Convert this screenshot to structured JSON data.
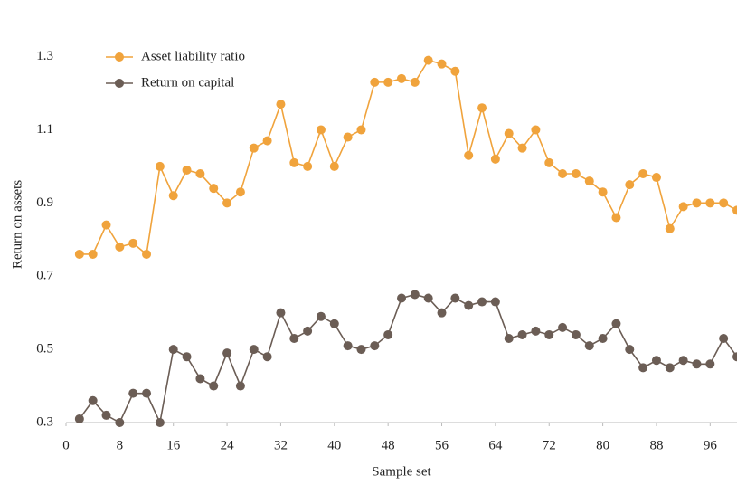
{
  "chart_data": {
    "type": "line",
    "x_label": "Sample set",
    "y_label": "Return on assets",
    "x": [
      2,
      4,
      6,
      8,
      10,
      12,
      14,
      16,
      18,
      20,
      22,
      24,
      26,
      28,
      30,
      32,
      34,
      36,
      38,
      40,
      42,
      44,
      46,
      48,
      50,
      52,
      54,
      56,
      58,
      60,
      62,
      64,
      66,
      68,
      70,
      72,
      74,
      76,
      78,
      80,
      82,
      84,
      86,
      88,
      90,
      92,
      94,
      96,
      98,
      100
    ],
    "series": [
      {
        "name": "Asset liability ratio",
        "color": "#f0a33c",
        "values": [
          0.76,
          0.76,
          0.84,
          0.78,
          0.79,
          0.76,
          1.0,
          0.92,
          0.99,
          0.98,
          0.94,
          0.9,
          0.93,
          1.05,
          1.07,
          1.17,
          1.01,
          1.0,
          1.1,
          1.0,
          1.08,
          1.1,
          1.23,
          1.23,
          1.24,
          1.23,
          1.29,
          1.28,
          1.26,
          1.03,
          1.16,
          1.02,
          1.09,
          1.05,
          1.1,
          1.01,
          0.98,
          0.98,
          0.96,
          0.93,
          0.86,
          0.95,
          0.98,
          0.97,
          0.83,
          0.89,
          0.9,
          0.9,
          0.9,
          0.88
        ]
      },
      {
        "name": "Return on capital",
        "color": "#6b5d55",
        "values": [
          0.31,
          0.36,
          0.32,
          0.3,
          0.38,
          0.38,
          0.3,
          0.5,
          0.48,
          0.42,
          0.4,
          0.49,
          0.4,
          0.5,
          0.48,
          0.6,
          0.53,
          0.55,
          0.59,
          0.57,
          0.51,
          0.5,
          0.51,
          0.54,
          0.64,
          0.65,
          0.64,
          0.6,
          0.64,
          0.62,
          0.63,
          0.63,
          0.53,
          0.54,
          0.55,
          0.54,
          0.56,
          0.54,
          0.51,
          0.53,
          0.57,
          0.5,
          0.45,
          0.47,
          0.45,
          0.47,
          0.46,
          0.46,
          0.53,
          0.48
        ]
      }
    ],
    "xlim": [
      0,
      100
    ],
    "xticks": [
      0,
      8,
      16,
      24,
      32,
      40,
      48,
      56,
      64,
      72,
      80,
      88,
      96
    ],
    "ylim": [
      0.3,
      1.43
    ],
    "yticks": [
      0.3,
      0.5,
      0.7,
      0.9,
      1.1,
      1.3
    ],
    "grid": false,
    "legend": "upper left"
  }
}
